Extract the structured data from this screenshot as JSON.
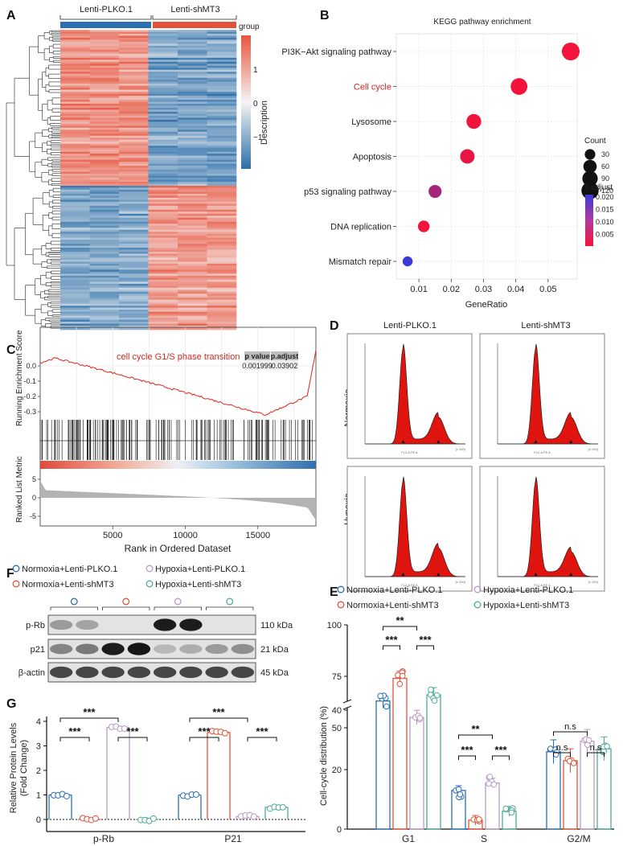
{
  "panels": {
    "A": "A",
    "B": "B",
    "C": "C",
    "D": "D",
    "E": "E",
    "F": "F",
    "G": "G"
  },
  "groups": {
    "ctrl": "Lenti-PLKO.1",
    "sh": "Lenti-shMT3"
  },
  "colors": {
    "blue": "#2a6fb0",
    "red": "#e0533a",
    "purple": "#b99ac4",
    "teal": "#4eab9a",
    "hm_hi": "#e8553f",
    "hm_lo": "#2b6ea8",
    "hm_mid": "#f4f4f4",
    "flow": "#e0140f"
  },
  "heatmap": {
    "legend_title": "group",
    "scale_ticks": [
      "1",
      "0",
      "−1"
    ],
    "side_label": "Description"
  },
  "chart_data": [
    {
      "id": "B",
      "type": "scatter",
      "title": "KEGG pathway enrichment",
      "xlabel": "GeneRatio",
      "xlim": [
        0.003,
        0.059
      ],
      "xticks": [
        "0.01",
        "0.02",
        "0.03",
        "0.04",
        "0.05"
      ],
      "categories": [
        "PI3K−Akt signaling pathway",
        "Cell cycle",
        "Lysosome",
        "Apoptosis",
        "p53 signaling pathway",
        "DNA replication",
        "Mismatch repair"
      ],
      "highlight": "Cell cycle",
      "points": [
        {
          "x": 0.057,
          "count": 130,
          "padj": 0.0005
        },
        {
          "x": 0.041,
          "count": 110,
          "padj": 0.0006
        },
        {
          "x": 0.027,
          "count": 80,
          "padj": 0.0012
        },
        {
          "x": 0.025,
          "count": 75,
          "padj": 0.0018
        },
        {
          "x": 0.015,
          "count": 55,
          "padj": 0.009
        },
        {
          "x": 0.0115,
          "count": 40,
          "padj": 0.001
        },
        {
          "x": 0.0065,
          "count": 25,
          "padj": 0.021
        }
      ],
      "size_legend": {
        "title": "Count",
        "values": [
          "30",
          "60",
          "90",
          "120"
        ]
      },
      "color_legend": {
        "title": "p.adjust",
        "values": [
          "0.020",
          "0.015",
          "0.010",
          "0.005"
        ]
      }
    },
    {
      "id": "C",
      "type": "line",
      "title": "cell cycle G1/S phase transition",
      "ylabel_top": "Running Enrichment Score",
      "ylabel_bottom": "Ranked List Metric",
      "xlabel": "Rank in Ordered Dataset",
      "xticks": [
        "5000",
        "10000",
        "15000"
      ],
      "yticks_top": [
        "0.0",
        "-0.1",
        "-0.2",
        "-0.3"
      ],
      "yticks_bottom": [
        "5",
        "0",
        "-5"
      ],
      "stat_headers": [
        "p value",
        "p.adjust"
      ],
      "stat_values": [
        "0.001999",
        "0.03902"
      ]
    },
    {
      "id": "D",
      "type": "area",
      "cols": [
        "Lenti-PLKO.1",
        "Lenti-shMT3"
      ],
      "rows": [
        "Normoxia",
        "Hypoxia"
      ],
      "axis_label": "FL2-A FE A",
      "scale_note": "(x 100)"
    },
    {
      "id": "E",
      "type": "bar",
      "ylabel": "Cell-cycle distribution (%)",
      "categories": [
        "G1",
        "S",
        "G2/M"
      ],
      "yticks": [
        "0",
        "20",
        "40",
        "50",
        "75",
        "100"
      ],
      "series": [
        {
          "name": "Normoxia+Lenti-PLKO.1",
          "values": [
            63,
            13,
            26
          ]
        },
        {
          "name": "Normoxia+Lenti-shMT3",
          "values": [
            74,
            3,
            23
          ]
        },
        {
          "name": "Hypoxia+Lenti-PLKO.1",
          "values": [
            55,
            15.5,
            29.5
          ]
        },
        {
          "name": "Hypoxia+Lenti-shMT3",
          "values": [
            66,
            6,
            27
          ]
        }
      ],
      "sig": [
        "**",
        "***",
        "***",
        "**",
        "***",
        "***",
        "n.s",
        "n.s",
        "n.s"
      ]
    },
    {
      "id": "F",
      "type": "table",
      "bands": [
        "p-Rb",
        "p21",
        "β-actin"
      ],
      "sizes": [
        "110 kDa",
        "21 kDa",
        "45 kDa"
      ]
    },
    {
      "id": "G",
      "type": "bar",
      "ylabel": [
        "Relative Protein Levels",
        "(Fold Change)"
      ],
      "categories": [
        "p-Rb",
        "P21"
      ],
      "yticks": [
        "0",
        "1",
        "2",
        "3",
        "4"
      ],
      "series": [
        {
          "name": "Normoxia+Lenti-PLKO.1",
          "values": [
            1.0,
            1.0
          ]
        },
        {
          "name": "Normoxia+Lenti-shMT3",
          "values": [
            0.0,
            3.55
          ]
        },
        {
          "name": "Hypoxia+Lenti-PLKO.1",
          "values": [
            3.75,
            0.12
          ]
        },
        {
          "name": "Hypoxia+Lenti-shMT3",
          "values": [
            0.0,
            0.5
          ]
        }
      ],
      "sig": [
        "***",
        "***",
        "***",
        "***",
        "***",
        "***"
      ]
    }
  ]
}
